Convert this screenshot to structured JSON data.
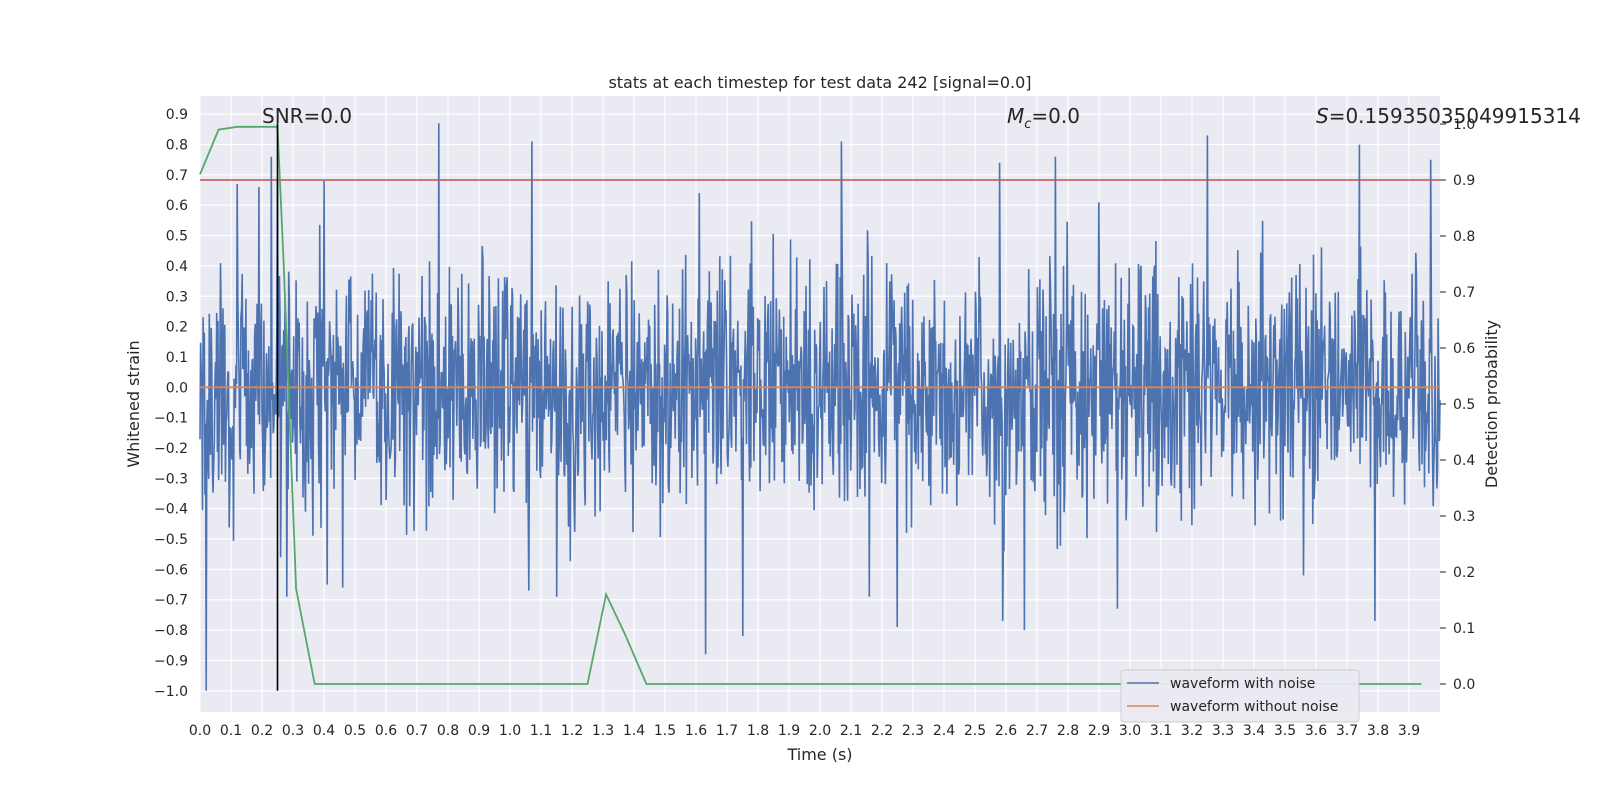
{
  "chart_data": {
    "type": "line",
    "title": "stats at each timestep for test data 242 [signal=0.0]",
    "xlabel": "Time (s)",
    "ylabel": "Whitened strain",
    "y2label": "Detection probability",
    "xlim": [
      0.0,
      4.0
    ],
    "ylim": [
      -1.07,
      0.96
    ],
    "y2lim": [
      -0.05,
      1.05
    ],
    "xticks": [
      0.0,
      0.1,
      0.2,
      0.3,
      0.4,
      0.5,
      0.6,
      0.7,
      0.8,
      0.9,
      1.0,
      1.1,
      1.2,
      1.3,
      1.4,
      1.5,
      1.6,
      1.7,
      1.8,
      1.9,
      2.0,
      2.1,
      2.2,
      2.3,
      2.4,
      2.5,
      2.6,
      2.7,
      2.8,
      2.9,
      3.0,
      3.1,
      3.2,
      3.3,
      3.4,
      3.5,
      3.6,
      3.7,
      3.8,
      3.9
    ],
    "xtick_labels": [
      "0.0",
      "0.1",
      "0.2",
      "0.3",
      "0.4",
      "0.5",
      "0.6",
      "0.7",
      "0.8",
      "0.9",
      "1.0",
      "1.1",
      "1.2",
      "1.3",
      "1.4",
      "1.5",
      "1.6",
      "1.7",
      "1.8",
      "1.9",
      "2.0",
      "2.1",
      "2.2",
      "2.3",
      "2.4",
      "2.5",
      "2.6",
      "2.7",
      "2.8",
      "2.9",
      "3.0",
      "3.1",
      "3.2",
      "3.3",
      "3.4",
      "3.5",
      "3.6",
      "3.7",
      "3.8",
      "3.9"
    ],
    "yticks": [
      0.9,
      0.8,
      0.7,
      0.6,
      0.5,
      0.4,
      0.3,
      0.2,
      0.1,
      0.0,
      -0.1,
      -0.2,
      -0.3,
      -0.4,
      -0.5,
      -0.6,
      -0.7,
      -0.8,
      -0.9,
      -1.0
    ],
    "ytick_labels": [
      "0.9",
      "0.8",
      "0.7",
      "0.6",
      "0.5",
      "0.4",
      "0.3",
      "0.2",
      "0.1",
      "0.0",
      "−0.1",
      "−0.2",
      "−0.3",
      "−0.4",
      "−0.5",
      "−0.6",
      "−0.7",
      "−0.8",
      "−0.9",
      "−1.0"
    ],
    "y2ticks": [
      0.0,
      0.1,
      0.2,
      0.3,
      0.4,
      0.5,
      0.6,
      0.7,
      0.8,
      0.9,
      1.0
    ],
    "y2tick_labels": [
      "0.0",
      "0.1",
      "0.2",
      "0.3",
      "0.4",
      "0.5",
      "0.6",
      "0.7",
      "0.8",
      "0.9",
      "1.0"
    ],
    "annotations": {
      "snr": "SNR=0.0",
      "mc_symbol": "M",
      "mc_sub": "c",
      "mc_value": "=0.0",
      "s_symbol": "S",
      "s_value": "=0.15935035049915314"
    },
    "series": [
      {
        "name": "waveform with noise",
        "color": "#4c72b0",
        "noise_amplitude_typical": 0.45,
        "peak_max": 0.87,
        "peak_min": -1.0,
        "spikes": [
          [
            0.02,
            -1.0
          ],
          [
            0.12,
            0.67
          ],
          [
            0.19,
            0.66
          ],
          [
            0.23,
            0.76
          ],
          [
            0.25,
            0.69
          ],
          [
            0.26,
            -0.56
          ],
          [
            0.28,
            -0.69
          ],
          [
            0.4,
            0.68
          ],
          [
            0.41,
            -0.65
          ],
          [
            0.46,
            -0.66
          ],
          [
            0.77,
            0.87
          ],
          [
            1.07,
            0.81
          ],
          [
            1.06,
            -0.67
          ],
          [
            1.15,
            -0.69
          ],
          [
            1.61,
            0.64
          ],
          [
            1.63,
            -0.88
          ],
          [
            1.75,
            -0.82
          ],
          [
            2.07,
            0.81
          ],
          [
            2.16,
            -0.69
          ],
          [
            2.25,
            -0.79
          ],
          [
            2.58,
            0.74
          ],
          [
            2.59,
            -0.77
          ],
          [
            2.66,
            -0.8
          ],
          [
            2.76,
            0.76
          ],
          [
            2.9,
            0.61
          ],
          [
            2.96,
            -0.73
          ],
          [
            3.25,
            0.83
          ],
          [
            3.56,
            -0.62
          ],
          [
            3.74,
            0.8
          ],
          [
            3.79,
            -0.77
          ],
          [
            3.97,
            0.75
          ]
        ]
      },
      {
        "name": "waveform without noise",
        "color": "#dd8452",
        "values_note": "flat at 0.0",
        "x": [
          0.0,
          4.0
        ],
        "y": [
          0.0,
          0.0
        ]
      },
      {
        "name": "detection probability",
        "color": "#55a868",
        "axis": "y2",
        "x": [
          0.0,
          0.06,
          0.12,
          0.19,
          0.25,
          0.27,
          0.31,
          0.37,
          0.44,
          0.5,
          0.56,
          1.25,
          1.31,
          1.37,
          1.44,
          1.5,
          3.94
        ],
        "y": [
          0.91,
          0.99,
          0.995,
          0.995,
          0.995,
          0.75,
          0.17,
          0.0,
          0.0,
          0.0,
          0.0,
          0.0,
          0.16,
          0.09,
          0.0,
          0.0,
          0.0
        ]
      }
    ],
    "threshold_line": {
      "axis": "y2",
      "value": 0.9,
      "color": "#c44e52"
    },
    "vertical_marker": {
      "x": 0.25,
      "color": "#000000",
      "y_from": -1.0,
      "y_to": 0.87
    },
    "legend": {
      "position": "lower-right",
      "entries": [
        "waveform with noise",
        "waveform without noise"
      ]
    }
  }
}
